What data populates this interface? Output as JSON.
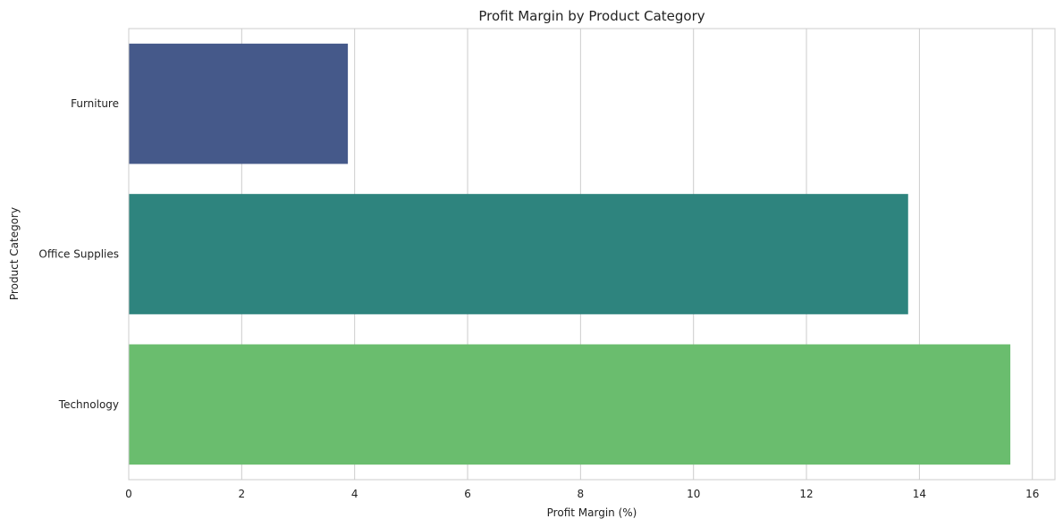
{
  "chart_data": {
    "type": "bar",
    "orientation": "horizontal",
    "title": "Profit Margin by Product Category",
    "xlabel": "Profit Margin (%)",
    "ylabel": "Product Category",
    "categories": [
      "Furniture",
      "Office Supplies",
      "Technology"
    ],
    "values": [
      3.88,
      13.8,
      15.61
    ],
    "colors": [
      "#45598a",
      "#2e847e",
      "#6abd6e"
    ],
    "xlim": [
      0,
      16.4
    ],
    "xticks": [
      0,
      2,
      4,
      6,
      8,
      10,
      12,
      14,
      16
    ],
    "grid": true
  }
}
